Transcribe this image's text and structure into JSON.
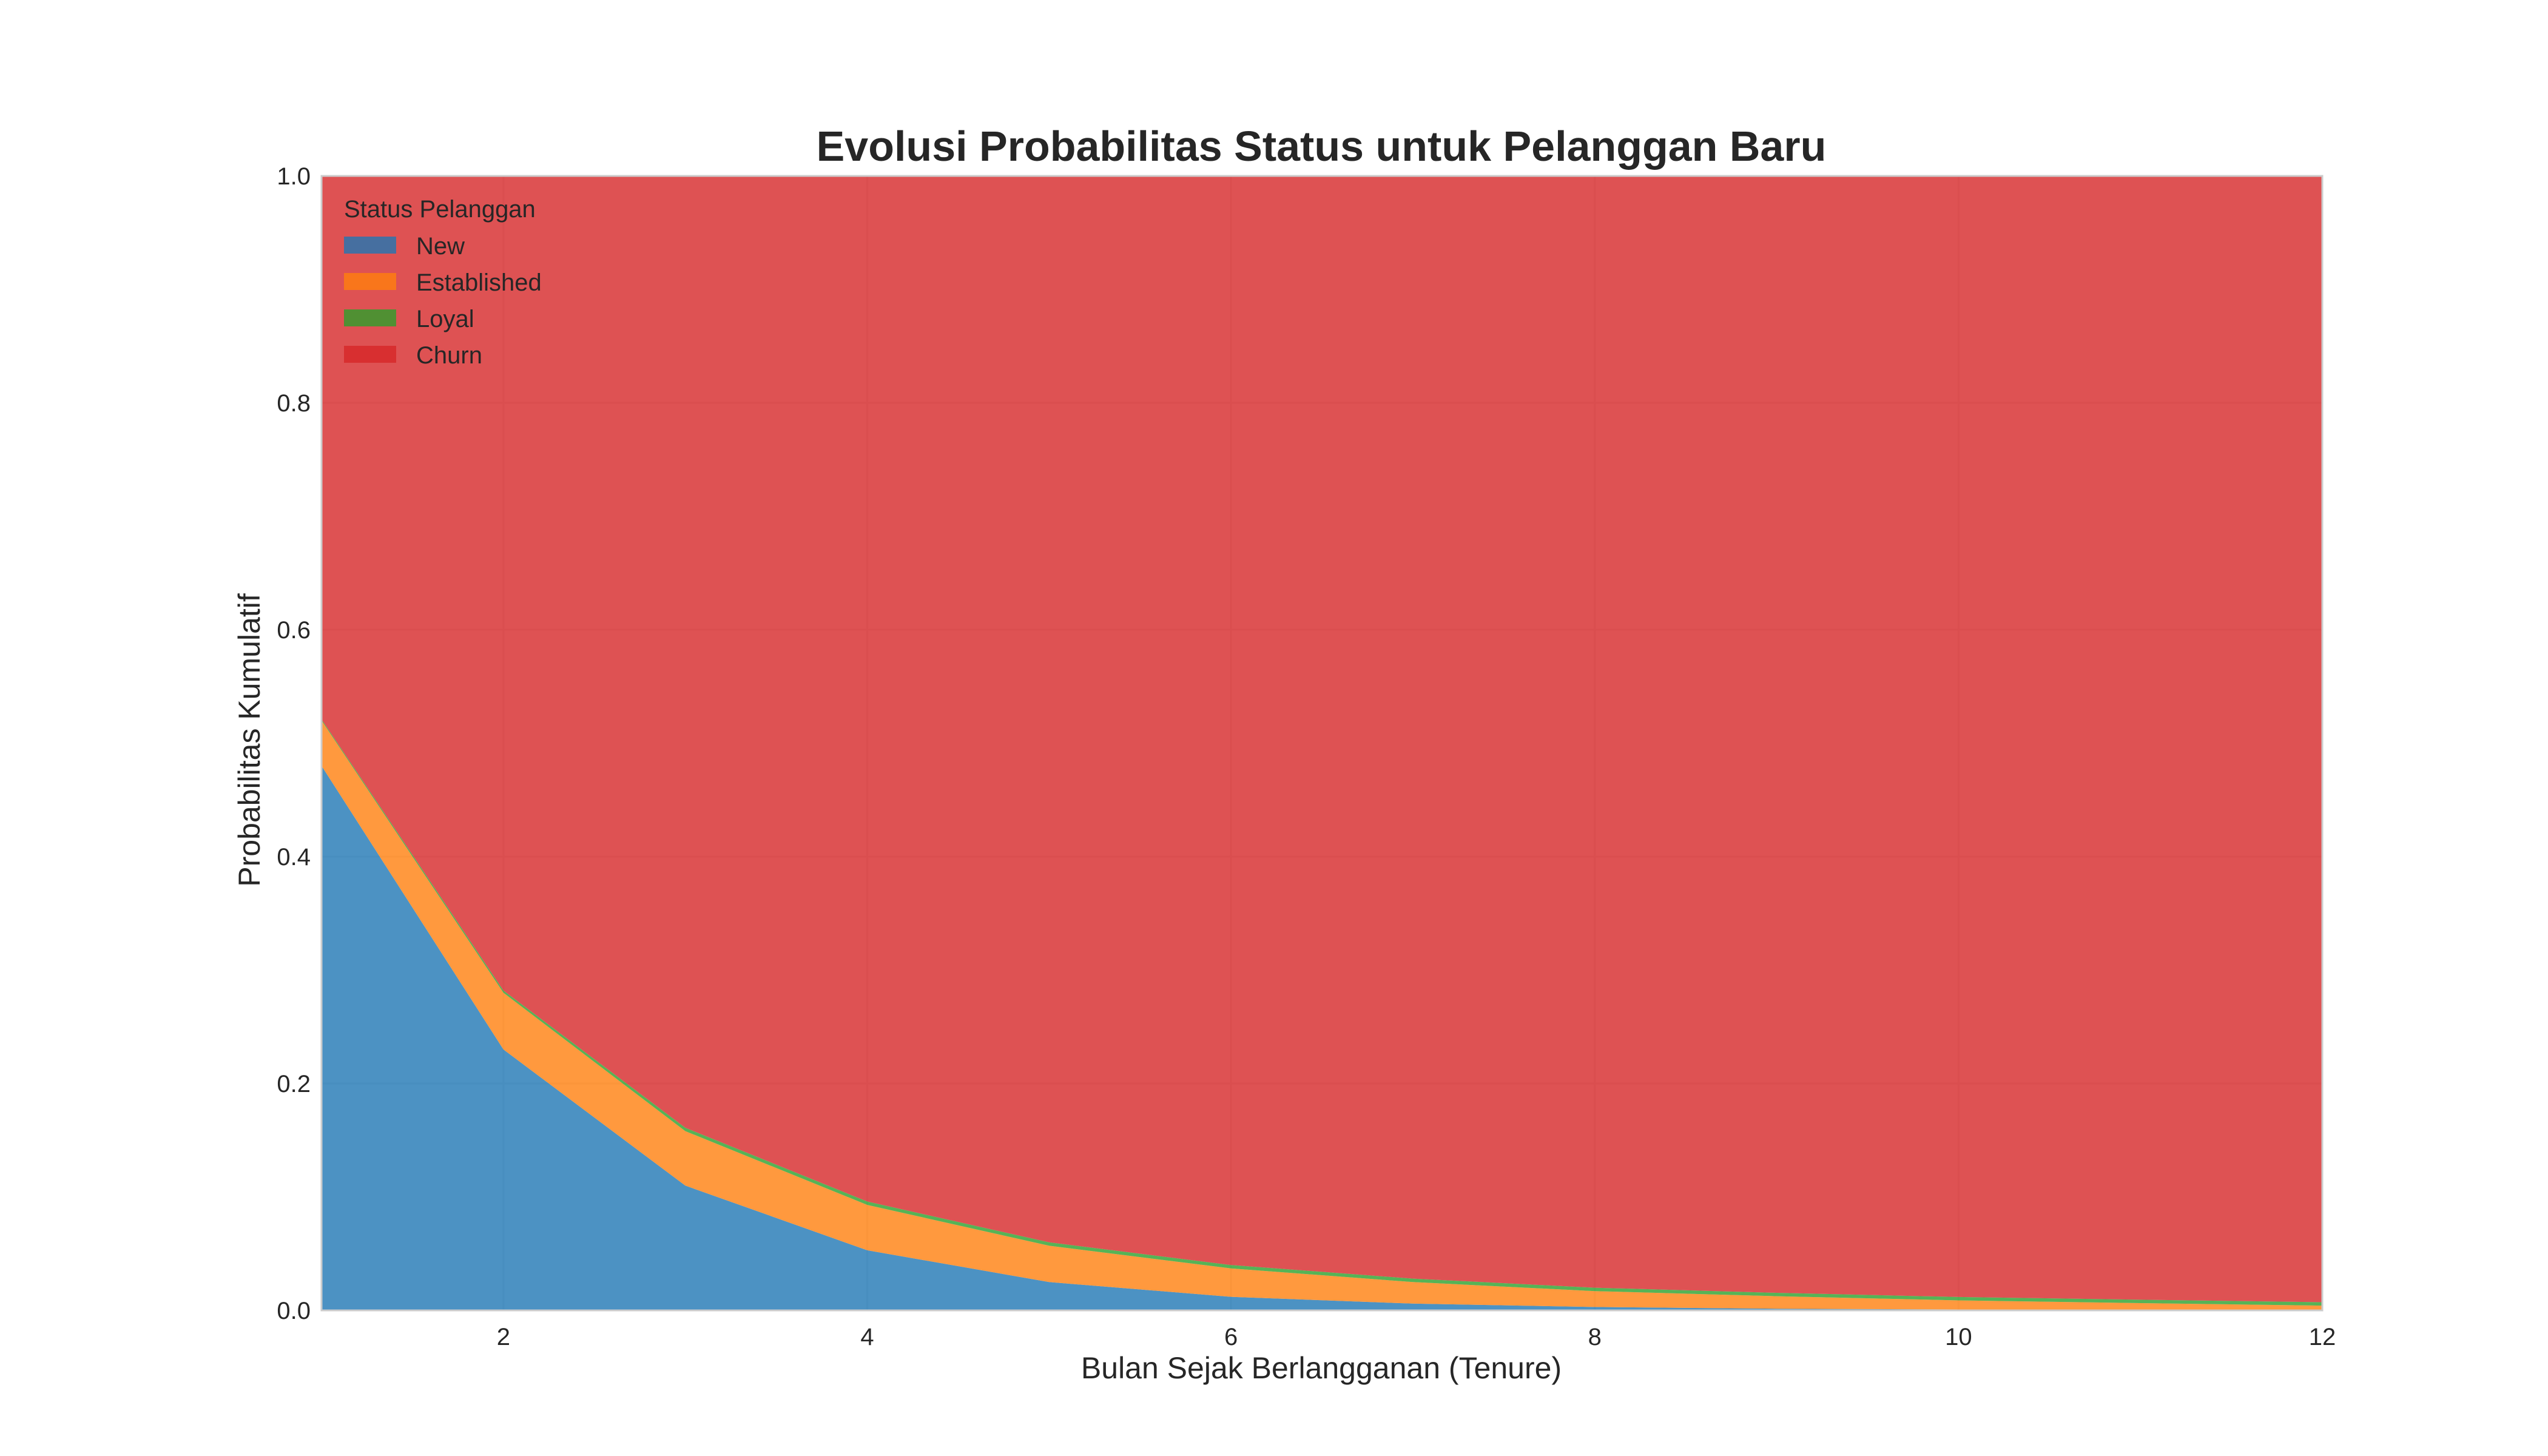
{
  "chart_data": {
    "type": "area",
    "stacked": true,
    "title": "Evolusi Probabilitas Status untuk Pelanggan Baru",
    "xlabel": "Bulan Sejak Berlangganan (Tenure)",
    "ylabel": "Probabilitas Kumulatif",
    "xlim": [
      1,
      12
    ],
    "ylim": [
      0,
      1.0
    ],
    "x_ticks": [
      "2",
      "4",
      "6",
      "8",
      "10",
      "12"
    ],
    "y_ticks": [
      "0.0",
      "0.2",
      "0.4",
      "0.6",
      "0.8",
      "1.0"
    ],
    "grid": true,
    "legend_position": "top-left",
    "legend_title": "Status Pelanggan",
    "x": [
      1,
      2,
      3,
      4,
      5,
      6,
      7,
      8,
      9,
      10,
      11,
      12
    ],
    "series": [
      {
        "name": "New",
        "color": "#1f77b4",
        "values": [
          0.48,
          0.23,
          0.11,
          0.053,
          0.025,
          0.012,
          0.006,
          0.003,
          0.0015,
          0.0008,
          0.0004,
          0.0002
        ]
      },
      {
        "name": "Established",
        "color": "#ff7f0e",
        "values": [
          0.04,
          0.05,
          0.048,
          0.04,
          0.032,
          0.025,
          0.019,
          0.014,
          0.011,
          0.008,
          0.006,
          0.004
        ]
      },
      {
        "name": "Loyal",
        "color": "#2ca02c",
        "values": [
          0.001,
          0.002,
          0.003,
          0.003,
          0.003,
          0.003,
          0.003,
          0.003,
          0.003,
          0.003,
          0.003,
          0.003
        ]
      },
      {
        "name": "Churn",
        "color": "#d62728",
        "values": [
          0.479,
          0.718,
          0.839,
          0.904,
          0.94,
          0.96,
          0.972,
          0.98,
          0.9845,
          0.9882,
          0.9906,
          0.9928
        ]
      }
    ]
  }
}
